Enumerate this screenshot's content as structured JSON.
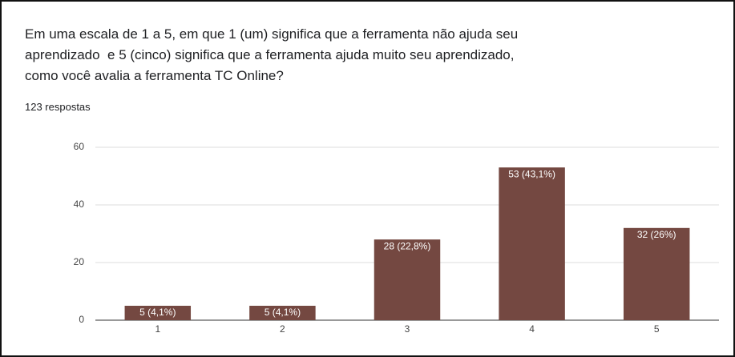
{
  "chart_data": {
    "type": "bar",
    "title": "Em uma escala de 1 a 5, em que 1 (um) significa que a ferramenta não ajuda seu\naprendizado  e 5 (cinco) significa que a ferramenta ajuda muito seu aprendizado,\ncomo você avalia a ferramenta TC Online?",
    "subtitle": "123 respostas",
    "categories": [
      "1",
      "2",
      "3",
      "4",
      "5"
    ],
    "values": [
      5,
      5,
      28,
      53,
      32
    ],
    "value_labels": [
      "5 (4,1%)",
      "5 (4,1%)",
      "28 (22,8%)",
      "53 (43,1%)",
      "32 (26%)"
    ],
    "color": "#744841",
    "ylim": [
      0,
      60
    ],
    "yticks": [
      0,
      20,
      40,
      60
    ],
    "grid": true
  }
}
